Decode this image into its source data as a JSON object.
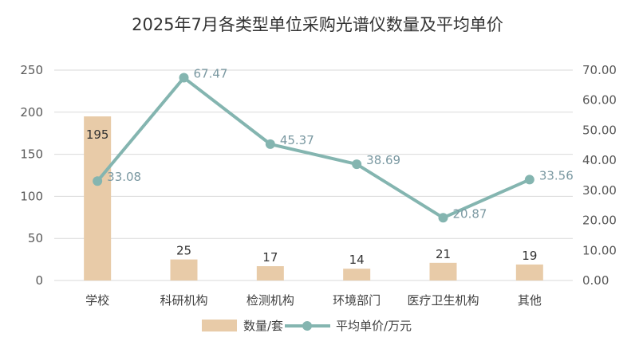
{
  "chart_data": {
    "type": "bar+line",
    "title": "2025年7月各类型单位采购光谱仪数量及平均单价",
    "categories": [
      "学校",
      "科研机构",
      "检测机构",
      "环境部门",
      "医疗卫生机构",
      "其他"
    ],
    "series": [
      {
        "name": "数量/套",
        "type": "bar",
        "axis": "left",
        "color": "#e8cba8",
        "values": [
          195,
          25,
          17,
          14,
          21,
          19
        ]
      },
      {
        "name": "平均单价/万元",
        "type": "line",
        "axis": "right",
        "color": "#84b5b0",
        "values": [
          33.08,
          67.47,
          45.37,
          38.69,
          20.87,
          33.56
        ],
        "labels": [
          "33.08",
          "67.47",
          "45.37",
          "38.69",
          "20.87",
          "33.56"
        ]
      }
    ],
    "y_left": {
      "range": [
        0,
        250
      ],
      "ticks": [
        "0",
        "50",
        "100",
        "150",
        "200",
        "250"
      ]
    },
    "y_right": {
      "range": [
        0,
        70
      ],
      "ticks": [
        "0.00",
        "10.00",
        "20.00",
        "30.00",
        "40.00",
        "50.00",
        "60.00",
        "70.00"
      ]
    },
    "grid": true,
    "legend_position": "bottom"
  }
}
